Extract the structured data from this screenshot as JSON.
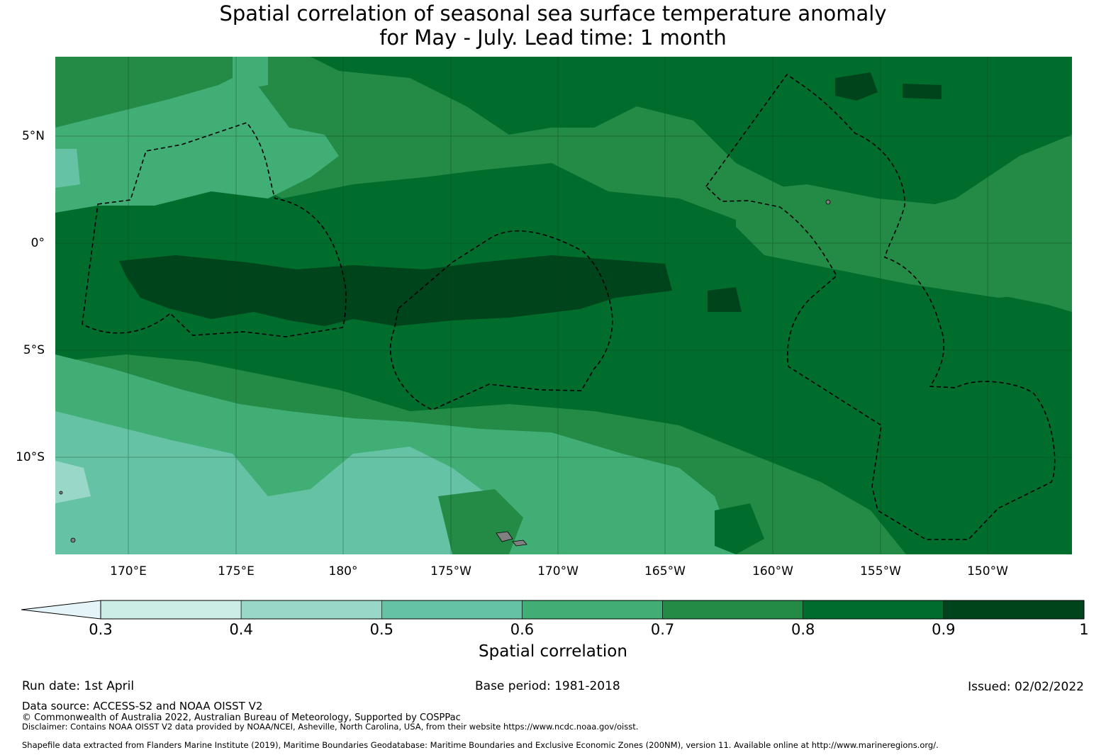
{
  "title": {
    "line1": "Spatial correlation of seasonal sea surface temperature anomaly",
    "line2": "for May - July. Lead time: 1 month"
  },
  "map": {
    "latitude_labels": [
      "5°N",
      "0°",
      "5°S",
      "10°S"
    ],
    "longitude_labels": [
      "170°E",
      "175°E",
      "180°",
      "175°W",
      "170°W",
      "165°W",
      "160°W",
      "155°W",
      "150°W"
    ],
    "boundary_style": "dashed black line",
    "land_color": "#808080"
  },
  "colorbar": {
    "label": "Spatial correlation",
    "ticks": [
      "0.3",
      "0.4",
      "0.5",
      "0.6",
      "0.7",
      "0.8",
      "0.9",
      "1"
    ],
    "under_color": "#e5f4f8",
    "colors": [
      "#ccece6",
      "#99d8c9",
      "#66c2a4",
      "#41ae76",
      "#238b45",
      "#006d2c",
      "#00441b"
    ]
  },
  "footer": {
    "run_date": "Run date: 1st April",
    "base_period": "Base period: 1981-2018",
    "issued": "Issued: 02/02/2022",
    "data_source": "Data source: ACCESS-S2 and NOAA OISST V2",
    "copyright": "© Commonwealth of Australia 2022, Australian Bureau of Meteorology, Supported by COSPPac",
    "disclaimer": "Disclaimer: Contains NOAA OISST V2 data provided by NOAA/NCEI, Asheville, North Carolina, USA, from their website https://www.ncdc.noaa.gov/oisst.",
    "shapefile": "Shapefile data extracted from Flanders Marine Institute (2019), Maritime Boundaries Geodatabase: Maritime Boundaries and Exclusive Economic Zones (200NM), version 11. Available online at http://www.marineregions.org/."
  }
}
